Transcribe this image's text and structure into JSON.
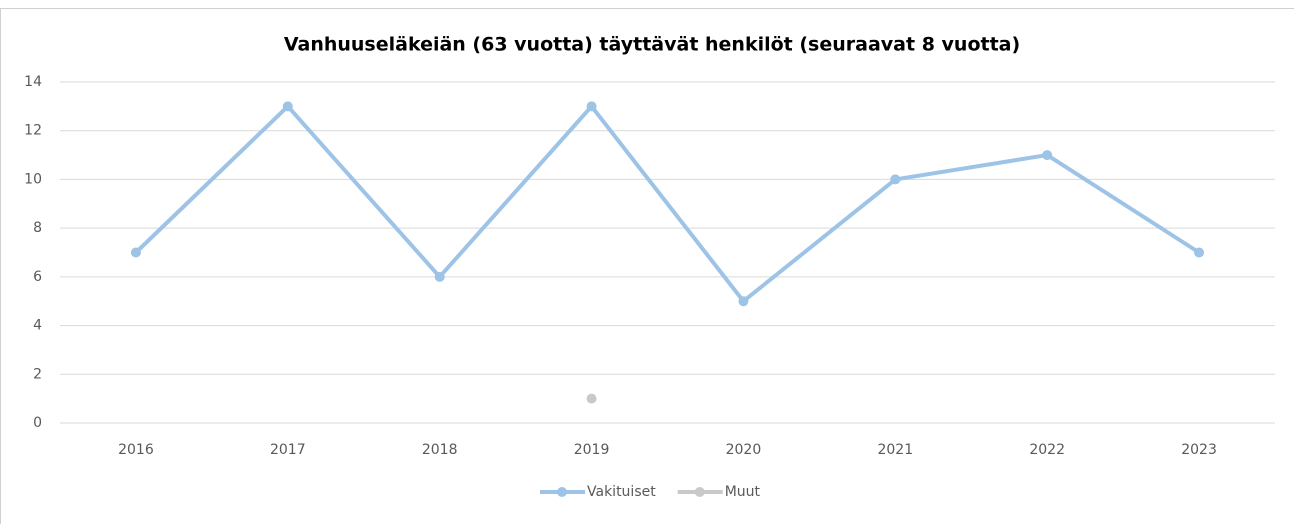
{
  "chart_data": {
    "type": "line",
    "title": "Vanhuuseläkeiän (63 vuotta) täyttävät henkilöt (seuraavat 8 vuotta)",
    "categories": [
      "2016",
      "2017",
      "2018",
      "2019",
      "2020",
      "2021",
      "2022",
      "2023"
    ],
    "series": [
      {
        "name": "Vakituiset",
        "color": "#9dc3e6",
        "values": [
          7,
          13,
          6,
          13,
          5,
          10,
          11,
          7
        ]
      },
      {
        "name": "Muut",
        "color": "#c9c9c9",
        "values": [
          null,
          null,
          null,
          1,
          null,
          null,
          null,
          null
        ]
      }
    ],
    "ylim": [
      0,
      14
    ],
    "yticks": [
      0,
      2,
      4,
      6,
      8,
      10,
      12,
      14
    ],
    "grid": true,
    "legend": "bottom"
  }
}
